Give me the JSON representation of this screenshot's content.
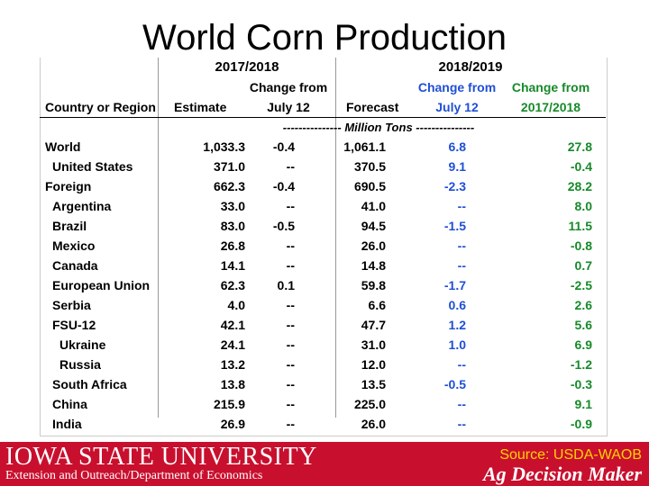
{
  "title": "World Corn Production",
  "headers": {
    "group1": "2017/2018",
    "group2": "2018/2019",
    "country": "Country or Region",
    "estimate": "Estimate",
    "change_july_1": "Change from",
    "change_july_2": "July 12",
    "forecast": "Forecast",
    "blue_change_1": "Change from",
    "blue_change_2": "July 12",
    "green_change_1": "Change from",
    "green_change_2": "2017/2018"
  },
  "units": "--------------- Million Tons ---------------",
  "rows": [
    {
      "region": "World",
      "est": "1,033.3",
      "chg": "-0.4",
      "fc": "1,061.1",
      "fchg": "6.8",
      "yoy": "27.8"
    },
    {
      "region": "United States",
      "est": "371.0",
      "chg": "--",
      "fc": "370.5",
      "fchg": "9.1",
      "yoy": "-0.4"
    },
    {
      "region": "Foreign",
      "est": "662.3",
      "chg": "-0.4",
      "fc": "690.5",
      "fchg": "-2.3",
      "yoy": "28.2"
    },
    {
      "region": "Argentina",
      "est": "33.0",
      "chg": "--",
      "fc": "41.0",
      "fchg": "--",
      "yoy": "8.0"
    },
    {
      "region": "Brazil",
      "est": "83.0",
      "chg": "-0.5",
      "fc": "94.5",
      "fchg": "-1.5",
      "yoy": "11.5"
    },
    {
      "region": "Mexico",
      "est": "26.8",
      "chg": "--",
      "fc": "26.0",
      "fchg": "--",
      "yoy": "-0.8"
    },
    {
      "region": "Canada",
      "est": "14.1",
      "chg": "--",
      "fc": "14.8",
      "fchg": "--",
      "yoy": "0.7"
    },
    {
      "region": "European Union",
      "est": "62.3",
      "chg": "0.1",
      "fc": "59.8",
      "fchg": "-1.7",
      "yoy": "-2.5"
    },
    {
      "region": "Serbia",
      "est": "4.0",
      "chg": "--",
      "fc": "6.6",
      "fchg": "0.6",
      "yoy": "2.6"
    },
    {
      "region": "FSU-12",
      "est": "42.1",
      "chg": "--",
      "fc": "47.7",
      "fchg": "1.2",
      "yoy": "5.6"
    },
    {
      "region": "Ukraine",
      "est": "24.1",
      "chg": "--",
      "fc": "31.0",
      "fchg": "1.0",
      "yoy": "6.9"
    },
    {
      "region": "Russia",
      "est": "13.2",
      "chg": "--",
      "fc": "12.0",
      "fchg": "--",
      "yoy": "-1.2"
    },
    {
      "region": "South Africa",
      "est": "13.8",
      "chg": "--",
      "fc": "13.5",
      "fchg": "-0.5",
      "yoy": "-0.3"
    },
    {
      "region": "China",
      "est": "215.9",
      "chg": "--",
      "fc": "225.0",
      "fchg": "--",
      "yoy": "9.1"
    },
    {
      "region": "India",
      "est": "26.9",
      "chg": "--",
      "fc": "26.0",
      "fchg": "--",
      "yoy": "-0.9"
    }
  ],
  "footer": {
    "university": "IOWA STATE UNIVERSITY",
    "department": "Extension and Outreach/Department of Economics",
    "source": "Source: USDA-WAOB",
    "brand": "Ag Decision Maker"
  }
}
